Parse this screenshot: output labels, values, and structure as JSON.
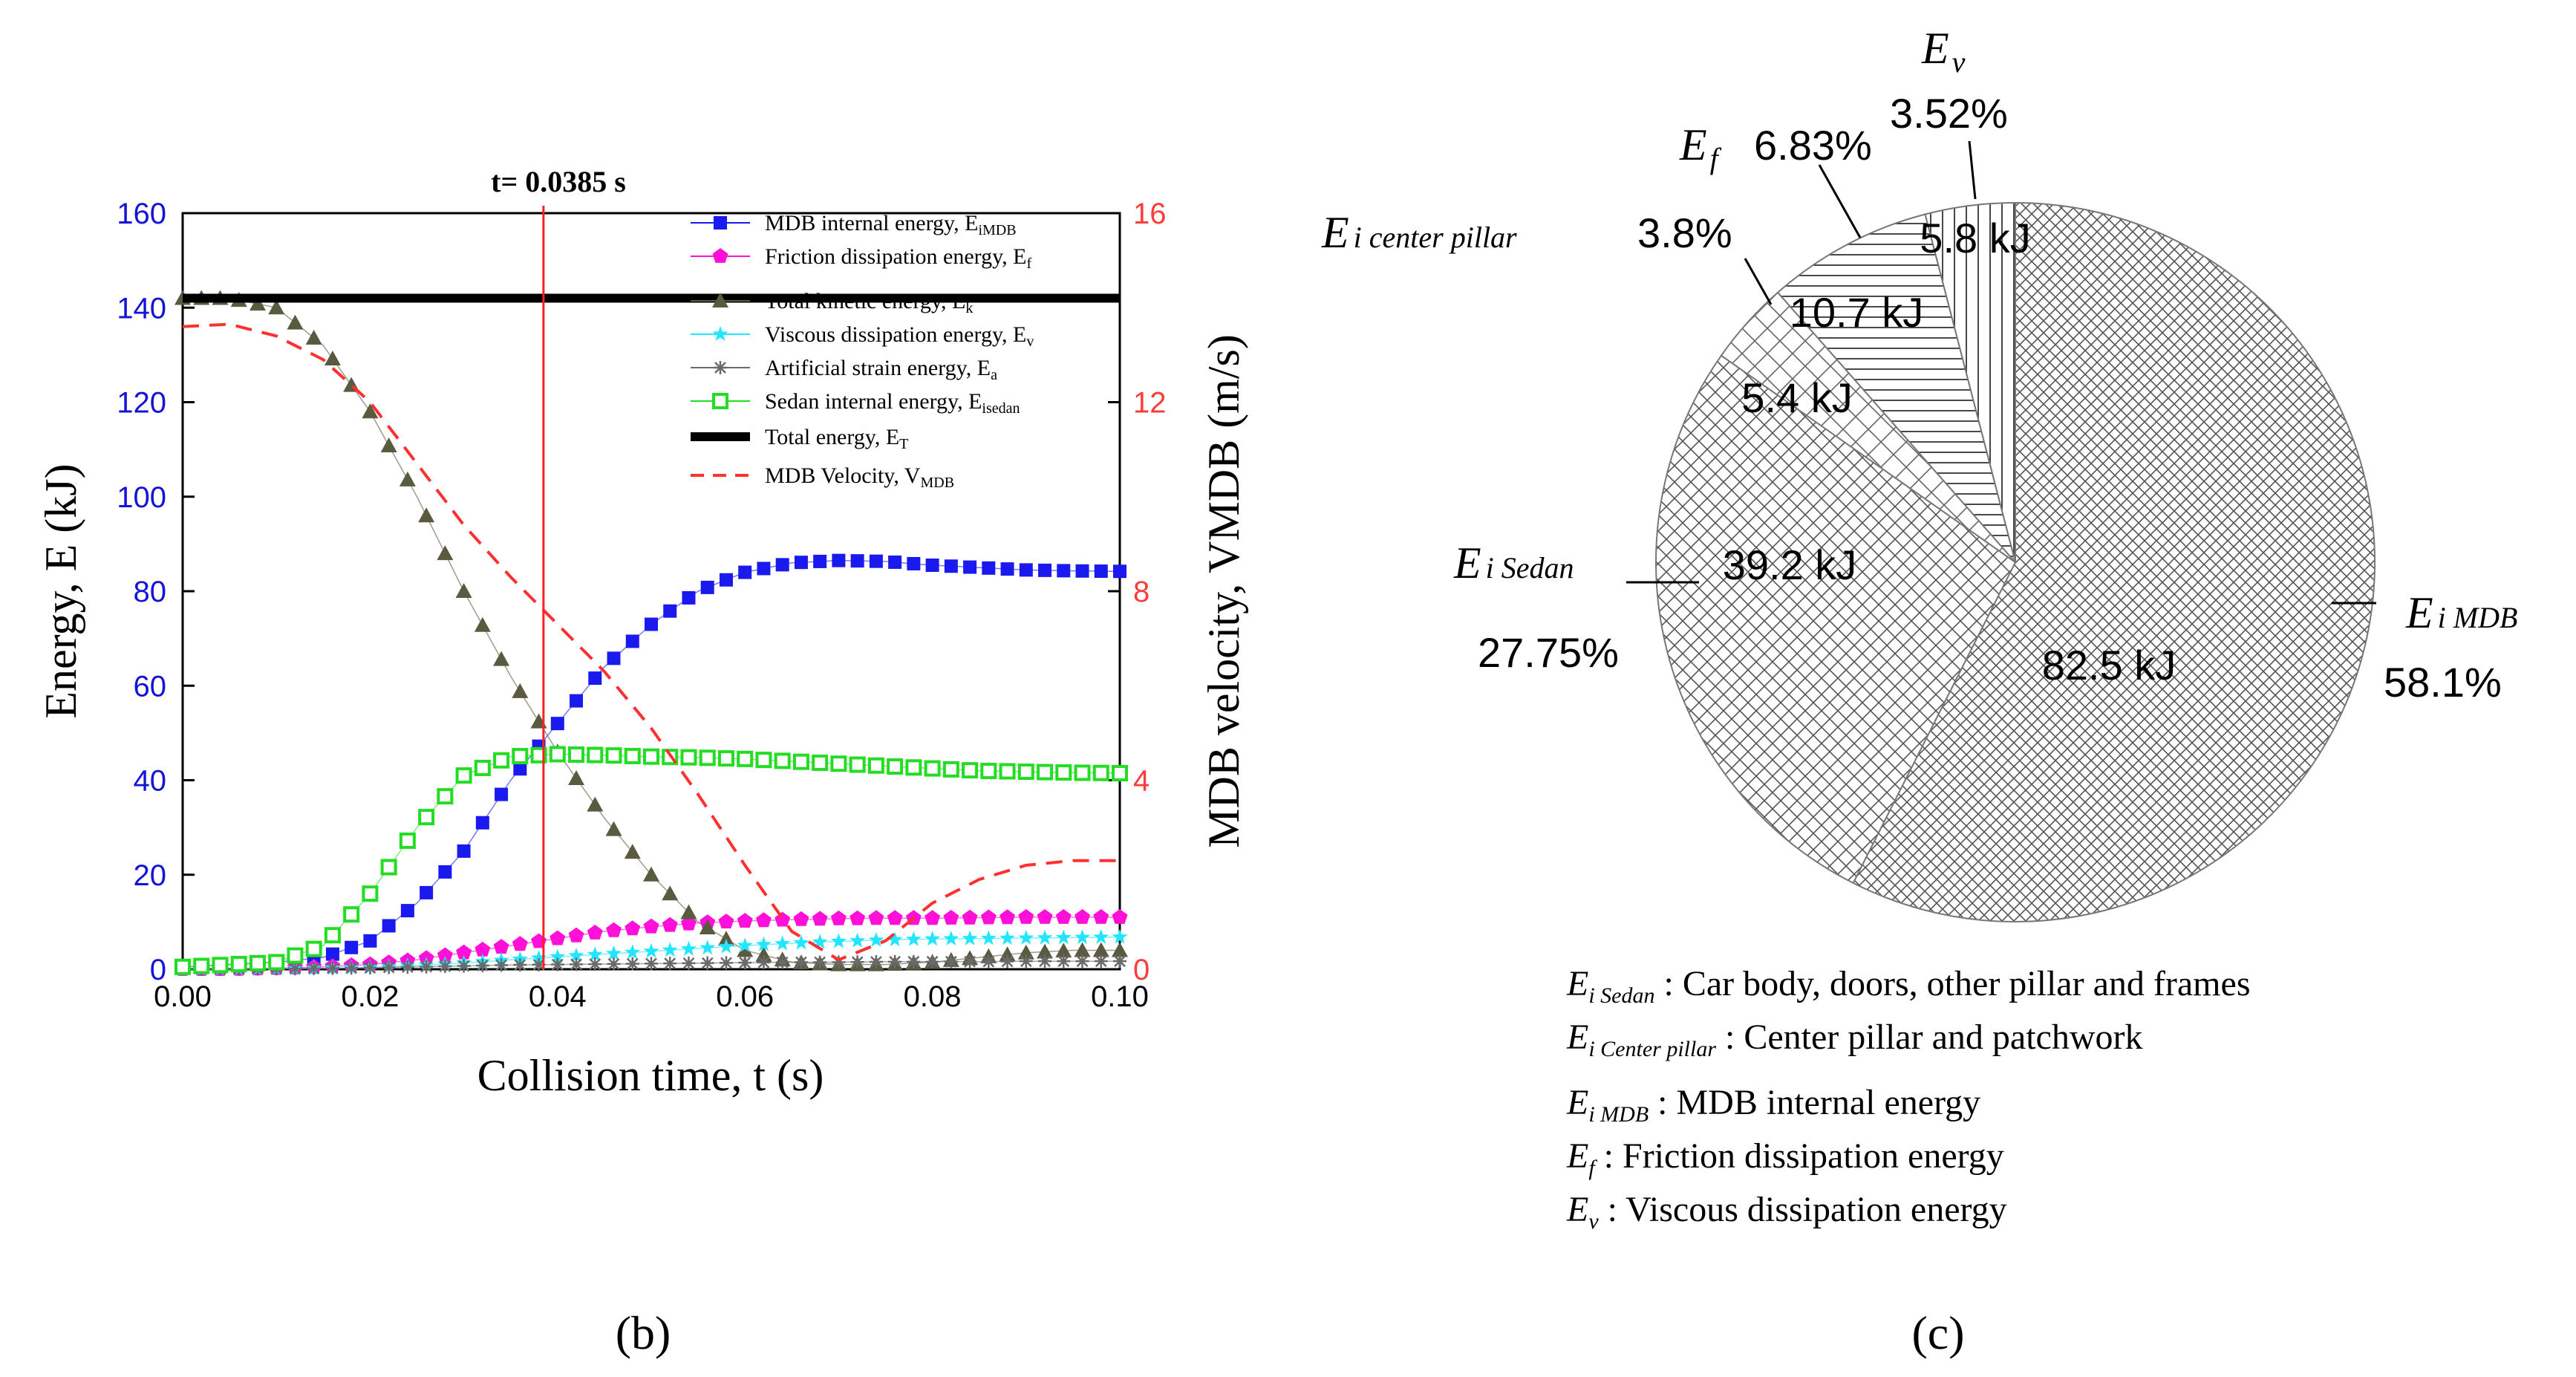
{
  "colors": {
    "left_axis": "#1414d8",
    "right_axis": "#ff3c3c",
    "marker_line": "#ff2020",
    "mdb": "#1a1aee",
    "friction": "#ff10d8",
    "kinetic": "#5a5a40",
    "viscous": "#22e5ff",
    "artificial": "#6a6a6a",
    "sedan": "#22dd22",
    "total": "#000000",
    "velocity": "#ff3030"
  },
  "panel_b": {
    "label": "(b)",
    "marker_label": "t= 0.0385 s",
    "marker_t": 0.0385,
    "left_axis_label": "Energy, E (kJ)",
    "right_axis_label": "MDB velocity, VMDB (m/s)",
    "x_axis_label": "Collision time, t (s)"
  },
  "panel_c": {
    "label": "(c)",
    "slices": [
      {
        "value_label": "82.5 kJ",
        "name_main": "E",
        "name_sub": "i MDB",
        "percent": "58.1%"
      },
      {
        "value_label": "39.2 kJ",
        "name_main": "E",
        "name_sub": "i Sedan",
        "percent": "27.75%"
      },
      {
        "value_label": "5.4 kJ",
        "name_main": "E",
        "name_sub": "i center pillar",
        "percent": "3.8%"
      },
      {
        "value_label": "10.7 kJ",
        "name_main": "E",
        "name_sub": "f",
        "percent": "6.83%"
      },
      {
        "value_label": "5.8 kJ",
        "name_main": "E",
        "name_sub": "v",
        "percent": "3.52%"
      }
    ],
    "notes": [
      {
        "sym": "E",
        "sub": "i Sedan",
        "text": ": Car body, doors, other pillar and frames"
      },
      {
        "sym": "E",
        "sub": "i Center pillar",
        "text": ": Center pillar and patchwork"
      },
      {
        "sym": "E",
        "sub": "i MDB",
        "text": ": MDB internal energy"
      },
      {
        "sym": "E",
        "sub": "f",
        "text": ": Friction dissipation energy"
      },
      {
        "sym": "E",
        "sub": "v",
        "text": ": Viscous dissipation energy"
      }
    ]
  },
  "chart_data": [
    {
      "type": "line",
      "title": "",
      "xlabel": "Collision time, t (s)",
      "ylabel": "Energy, E (kJ)",
      "y2label": "MDB velocity, VMDB (m/s)",
      "xlim": [
        0,
        0.1
      ],
      "ylim": [
        0,
        160
      ],
      "y2lim": [
        0,
        16
      ],
      "x_ticks": [
        "0.00",
        "0.02",
        "0.04",
        "0.06",
        "0.08",
        "0.10"
      ],
      "y_ticks": [
        "0",
        "20",
        "40",
        "60",
        "80",
        "100",
        "120",
        "140",
        "160"
      ],
      "y2_ticks": [
        "0",
        "4",
        "8",
        "12",
        "16"
      ],
      "legend_position": "top-right",
      "series": [
        {
          "name": "MDB internal energy, E",
          "sub": "iMDB",
          "color_key": "mdb",
          "marker": "square",
          "axis": "left",
          "x": [
            0,
            0.005,
            0.01,
            0.015,
            0.02,
            0.025,
            0.03,
            0.035,
            0.04,
            0.045,
            0.05,
            0.055,
            0.06,
            0.065,
            0.07,
            0.075,
            0.08,
            0.085,
            0.09,
            0.095,
            0.1
          ],
          "values": [
            0.5,
            1,
            1.5,
            2.5,
            6,
            14,
            25,
            40,
            52,
            64,
            73,
            80,
            84,
            86,
            86.5,
            86.3,
            85.5,
            85,
            84.5,
            84.3,
            84.2
          ]
        },
        {
          "name": "Friction dissipation energy, E",
          "sub": "f",
          "color_key": "friction",
          "marker": "pentagon",
          "axis": "left",
          "x": [
            0,
            0.005,
            0.01,
            0.015,
            0.02,
            0.025,
            0.03,
            0.035,
            0.04,
            0.045,
            0.05,
            0.055,
            0.06,
            0.065,
            0.07,
            0.075,
            0.08,
            0.085,
            0.09,
            0.095,
            0.1
          ],
          "values": [
            0,
            0,
            0.2,
            0.5,
            1,
            2,
            3.5,
            5,
            6.5,
            8,
            9,
            9.8,
            10.2,
            10.5,
            10.7,
            10.8,
            10.8,
            10.9,
            11,
            11,
            11
          ]
        },
        {
          "name": "Total kinetic energy, E",
          "sub": "k",
          "color_key": "kinetic",
          "marker": "triangle",
          "axis": "left",
          "x": [
            0,
            0.005,
            0.01,
            0.015,
            0.02,
            0.025,
            0.03,
            0.035,
            0.04,
            0.045,
            0.05,
            0.055,
            0.06,
            0.065,
            0.07,
            0.075,
            0.08,
            0.085,
            0.09,
            0.095,
            0.1
          ],
          "values": [
            142,
            142,
            140,
            132,
            118,
            100,
            80,
            62,
            46,
            32,
            20,
            10,
            4,
            1.5,
            1,
            1,
            1.5,
            2.5,
            3.5,
            4,
            4
          ]
        },
        {
          "name": "Viscous dissipation energy, E",
          "sub": "v",
          "color_key": "viscous",
          "marker": "star",
          "axis": "left",
          "x": [
            0,
            0.005,
            0.01,
            0.015,
            0.02,
            0.025,
            0.03,
            0.035,
            0.04,
            0.045,
            0.05,
            0.055,
            0.06,
            0.065,
            0.07,
            0.075,
            0.08,
            0.085,
            0.09,
            0.095,
            0.1
          ],
          "values": [
            0,
            0,
            0.1,
            0.2,
            0.4,
            0.8,
            1.3,
            2,
            2.6,
            3.2,
            3.8,
            4.4,
            5,
            5.5,
            5.9,
            6.2,
            6.4,
            6.5,
            6.6,
            6.7,
            6.8
          ]
        },
        {
          "name": "Artificial strain energy, E",
          "sub": "a",
          "color_key": "artificial",
          "marker": "asterisk",
          "axis": "left",
          "x": [
            0,
            0.005,
            0.01,
            0.015,
            0.02,
            0.025,
            0.03,
            0.035,
            0.04,
            0.045,
            0.05,
            0.055,
            0.06,
            0.065,
            0.07,
            0.075,
            0.08,
            0.085,
            0.09,
            0.095,
            0.1
          ],
          "values": [
            0,
            0,
            0.1,
            0.2,
            0.3,
            0.5,
            0.7,
            0.9,
            1,
            1.1,
            1.2,
            1.3,
            1.4,
            1.5,
            1.5,
            1.6,
            1.6,
            1.6,
            1.7,
            1.7,
            1.7
          ]
        },
        {
          "name": "Sedan internal energy, E",
          "sub": "isedan",
          "color_key": "sedan",
          "marker": "square-open",
          "axis": "left",
          "x": [
            0,
            0.005,
            0.01,
            0.015,
            0.02,
            0.025,
            0.03,
            0.035,
            0.04,
            0.045,
            0.05,
            0.055,
            0.06,
            0.065,
            0.07,
            0.075,
            0.08,
            0.085,
            0.09,
            0.095,
            0.1
          ],
          "values": [
            0.5,
            1,
            1.5,
            5,
            16,
            30,
            41,
            45,
            45.5,
            45.3,
            45,
            44.8,
            44.5,
            44,
            43.5,
            43,
            42.5,
            42,
            41.8,
            41.6,
            41.5
          ]
        },
        {
          "name": "Total energy, E",
          "sub": "T",
          "color_key": "total",
          "marker": "thick-line",
          "axis": "left",
          "x": [
            0,
            0.1
          ],
          "values": [
            142,
            142
          ]
        },
        {
          "name": "MDB Velocity, V",
          "sub": "MDB",
          "color_key": "velocity",
          "marker": "dashed",
          "axis": "right",
          "x": [
            0,
            0.005,
            0.01,
            0.015,
            0.02,
            0.025,
            0.03,
            0.035,
            0.04,
            0.045,
            0.05,
            0.055,
            0.06,
            0.065,
            0.07,
            0.075,
            0.08,
            0.085,
            0.09,
            0.095,
            0.1
          ],
          "values": [
            13.6,
            13.65,
            13.4,
            12.9,
            12,
            10.7,
            9.4,
            8.3,
            7.3,
            6.3,
            5.1,
            3.7,
            2.2,
            0.8,
            0.2,
            0.6,
            1.4,
            1.9,
            2.2,
            2.3,
            2.3
          ]
        }
      ]
    },
    {
      "type": "pie",
      "title": "",
      "categories": [
        "Ei MDB",
        "Ei Sedan",
        "Ei center pillar",
        "Ef",
        "Ev"
      ],
      "values": [
        82.5,
        39.2,
        5.4,
        10.7,
        5.8
      ],
      "percents": [
        58.1,
        27.75,
        3.8,
        6.83,
        3.52
      ],
      "unit": "kJ"
    }
  ]
}
